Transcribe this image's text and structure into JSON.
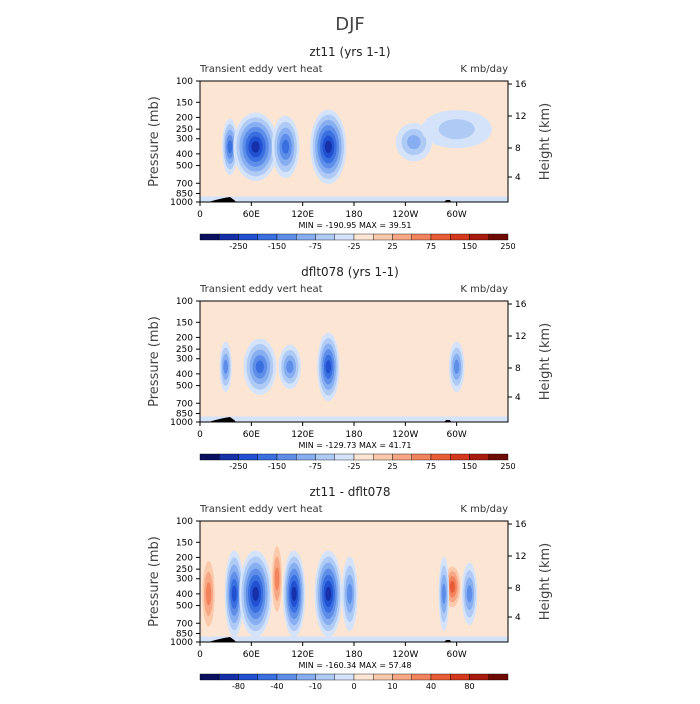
{
  "main_title": "DJF",
  "chart_data": [
    {
      "type": "heatmap",
      "title": "zt11 (yrs 1-1)",
      "subtitle_left": "Transient eddy vert heat",
      "subtitle_right": "K mb/day",
      "ylabel": "Pressure (mb)",
      "ylabel_right": "Height (km)",
      "x_ticks": [
        "0",
        "60E",
        "120E",
        "180",
        "120W",
        "60W"
      ],
      "y_ticks": [
        "100",
        "150",
        "200",
        "250",
        "300",
        "400",
        "500",
        "700",
        "850",
        "1000"
      ],
      "y_right_ticks": [
        "16",
        "12",
        "8",
        "4"
      ],
      "min_max": "MIN = -190.95   MAX = 39.51",
      "colorbar_labels": [
        "-250",
        "-150",
        "-75",
        "-25",
        "25",
        "75",
        "150",
        "250"
      ],
      "colorbar_colors": [
        "#08105f",
        "#1530a8",
        "#2150d0",
        "#3a6fe0",
        "#5e8ee8",
        "#86aef0",
        "#aecaf5",
        "#d4e3fa",
        "#fde5d4",
        "#fbc9ab",
        "#f7a784",
        "#f2835c",
        "#e85d35",
        "#d4391c",
        "#a81c0e",
        "#6e0a04"
      ],
      "features": [
        {
          "lon": 35,
          "p": 350,
          "w": 8,
          "h": 0.45,
          "level": 4
        },
        {
          "lon": 65,
          "p": 350,
          "w": 25,
          "h": 0.55,
          "level": 6
        },
        {
          "lon": 100,
          "p": 350,
          "w": 15,
          "h": 0.5,
          "level": 4
        },
        {
          "lon": 150,
          "p": 350,
          "w": 20,
          "h": 0.6,
          "level": 6
        },
        {
          "lon": 250,
          "p": 320,
          "w": 20,
          "h": 0.3,
          "level": 2
        },
        {
          "lon": 300,
          "p": 250,
          "w": 40,
          "h": 0.3,
          "level": 1
        }
      ]
    },
    {
      "type": "heatmap",
      "title": "dflt078 (yrs 1-1)",
      "subtitle_left": "Transient eddy vert heat",
      "subtitle_right": "K mb/day",
      "ylabel": "Pressure (mb)",
      "ylabel_right": "Height (km)",
      "x_ticks": [
        "0",
        "60E",
        "120E",
        "180",
        "120W",
        "60W"
      ],
      "y_ticks": [
        "100",
        "150",
        "200",
        "250",
        "300",
        "400",
        "500",
        "700",
        "850",
        "1000"
      ],
      "y_right_ticks": [
        "16",
        "12",
        "8",
        "4"
      ],
      "min_max": "MIN = -129.73   MAX = 41.71",
      "colorbar_labels": [
        "-250",
        "-150",
        "-75",
        "-25",
        "25",
        "75",
        "150",
        "250"
      ],
      "colorbar_colors": [
        "#08105f",
        "#1530a8",
        "#2150d0",
        "#3a6fe0",
        "#5e8ee8",
        "#86aef0",
        "#aecaf5",
        "#d4e3fa",
        "#fde5d4",
        "#fbc9ab",
        "#f7a784",
        "#f2835c",
        "#e85d35",
        "#d4391c",
        "#a81c0e",
        "#6e0a04"
      ],
      "features": [
        {
          "lon": 30,
          "p": 350,
          "w": 6,
          "h": 0.4,
          "level": 3
        },
        {
          "lon": 70,
          "p": 350,
          "w": 18,
          "h": 0.45,
          "level": 4
        },
        {
          "lon": 105,
          "p": 350,
          "w": 12,
          "h": 0.35,
          "level": 3
        },
        {
          "lon": 150,
          "p": 350,
          "w": 12,
          "h": 0.55,
          "level": 5
        },
        {
          "lon": 300,
          "p": 350,
          "w": 8,
          "h": 0.4,
          "level": 3
        }
      ]
    },
    {
      "type": "heatmap",
      "title": "zt11 - dflt078",
      "subtitle_left": "Transient eddy vert heat",
      "subtitle_right": "K mb/day",
      "ylabel": "Pressure (mb)",
      "ylabel_right": "Height (km)",
      "x_ticks": [
        "0",
        "60E",
        "120E",
        "180",
        "120W",
        "60W"
      ],
      "y_ticks": [
        "100",
        "150",
        "200",
        "250",
        "300",
        "400",
        "500",
        "700",
        "850",
        "1000"
      ],
      "y_right_ticks": [
        "16",
        "12",
        "8",
        "4"
      ],
      "min_max": "MIN = -160.34   MAX = 57.48",
      "colorbar_labels": [
        "-80",
        "-40",
        "-10",
        "0",
        "10",
        "40",
        "80"
      ],
      "colorbar_colors": [
        "#08105f",
        "#1530a8",
        "#2150d0",
        "#3a6fe0",
        "#5e8ee8",
        "#86aef0",
        "#aecaf5",
        "#d4e3fa",
        "#fde5d4",
        "#fbc9ab",
        "#f7a784",
        "#f2835c",
        "#e85d35",
        "#d4391c",
        "#a81c0e",
        "#6e0a04"
      ],
      "features": [
        {
          "lon": 10,
          "p": 400,
          "w": 8,
          "h": 0.7,
          "level": -3
        },
        {
          "lon": 40,
          "p": 400,
          "w": 10,
          "h": 0.7,
          "level": 5
        },
        {
          "lon": 65,
          "p": 400,
          "w": 18,
          "h": 0.7,
          "level": 6
        },
        {
          "lon": 90,
          "p": 300,
          "w": 6,
          "h": 0.7,
          "level": -3
        },
        {
          "lon": 110,
          "p": 400,
          "w": 12,
          "h": 0.7,
          "level": 6
        },
        {
          "lon": 150,
          "p": 400,
          "w": 15,
          "h": 0.7,
          "level": 6
        },
        {
          "lon": 175,
          "p": 400,
          "w": 8,
          "h": 0.6,
          "level": 3
        },
        {
          "lon": 295,
          "p": 350,
          "w": 10,
          "h": 0.4,
          "level": -4
        },
        {
          "lon": 285,
          "p": 400,
          "w": 5,
          "h": 0.6,
          "level": 3
        },
        {
          "lon": 315,
          "p": 400,
          "w": 8,
          "h": 0.5,
          "level": 3
        }
      ]
    }
  ]
}
